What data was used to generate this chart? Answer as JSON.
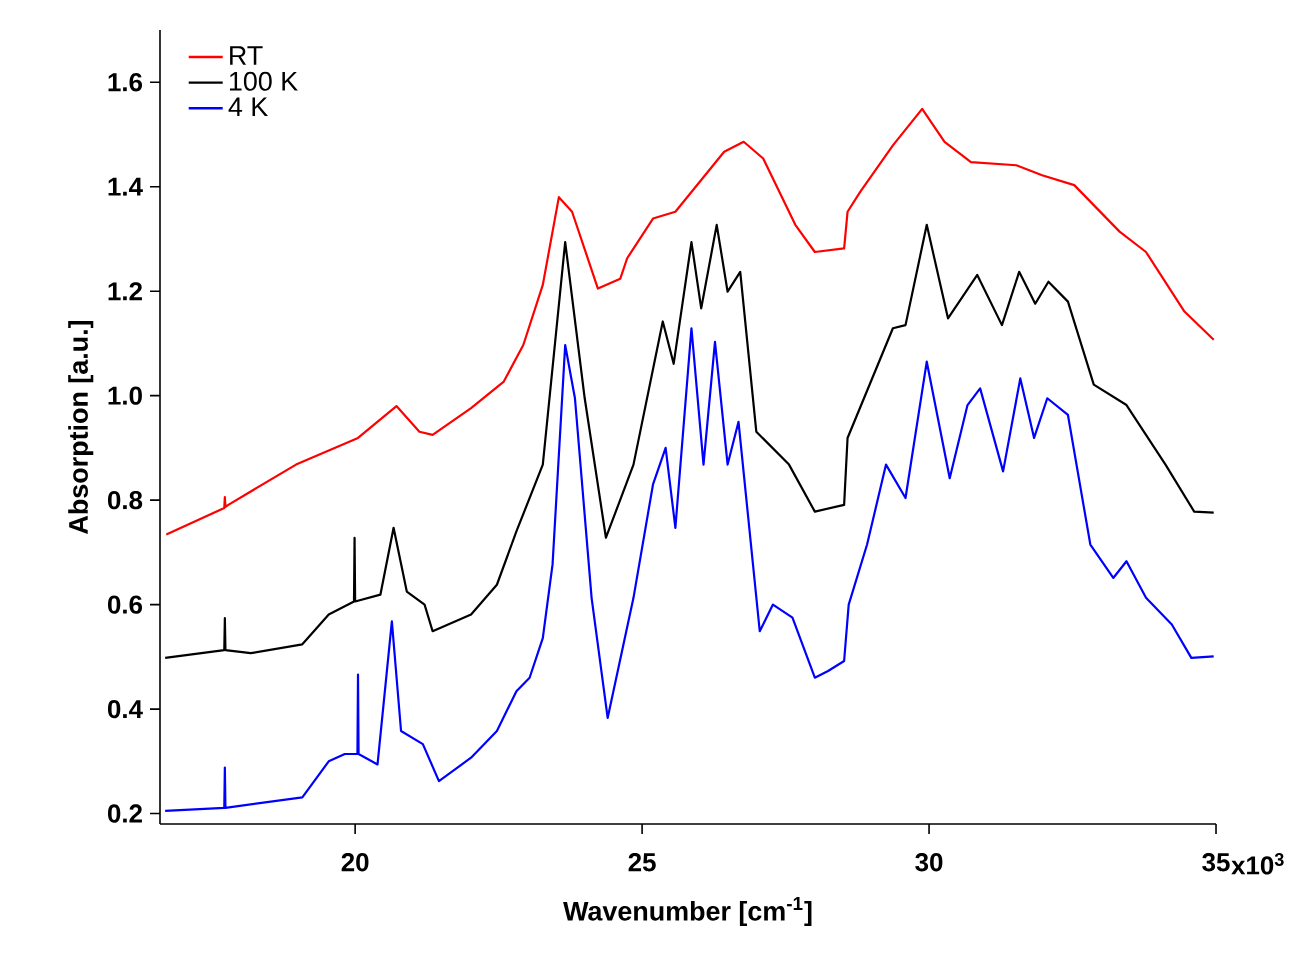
{
  "chart_data": {
    "type": "line",
    "xlabel": "Wavenumber [cm$^{-1}$]",
    "ylabel": "Absorption [a.u.]",
    "xlim": [
      16.6,
      35
    ],
    "ylim": [
      0.18,
      1.7
    ],
    "xticks": [
      20,
      25,
      30,
      35
    ],
    "annotations": [
      "x10$^{3}$"
    ],
    "yticks": [
      {
        "value": 0.2,
        "label": "0.2"
      },
      {
        "value": 0.4,
        "label": "0.4"
      },
      {
        "value": 0.6,
        "label": "0.6"
      },
      {
        "value": 0.8,
        "label": "0.8"
      },
      {
        "value": 1.0,
        "label": "1.0"
      },
      {
        "value": 1.2,
        "label": "1.2"
      },
      {
        "value": 1.4,
        "label": "1.4"
      },
      {
        "value": 1.6,
        "label": "1.6"
      }
    ],
    "grid": false,
    "legend": "top left",
    "marker": "none",
    "line_style": "solid",
    "series": [
      {
        "name": "RT",
        "color": "#ff0000",
        "x": [
          16.71,
          17.72,
          17.73,
          17.74,
          17.79,
          18.97,
          20.05,
          20.72,
          21.12,
          21.35,
          22.02,
          22.59,
          22.93,
          23.27,
          23.55,
          23.78,
          24.23,
          24.62,
          24.74,
          25.19,
          25.58,
          26.43,
          26.77,
          27.11,
          27.67,
          28.01,
          28.52,
          28.58,
          28.8,
          29.37,
          29.88,
          30.27,
          30.73,
          31.52,
          31.97,
          32.53,
          33.32,
          33.78,
          34.45,
          34.96
        ],
        "values": [
          0.734,
          0.785,
          0.806,
          0.787,
          0.791,
          0.868,
          0.919,
          0.98,
          0.931,
          0.925,
          0.976,
          1.027,
          1.097,
          1.212,
          1.38,
          1.352,
          1.205,
          1.224,
          1.263,
          1.339,
          1.352,
          1.467,
          1.486,
          1.454,
          1.327,
          1.275,
          1.282,
          1.352,
          1.39,
          1.479,
          1.549,
          1.486,
          1.447,
          1.441,
          1.422,
          1.403,
          1.314,
          1.275,
          1.161,
          1.107
        ]
      },
      {
        "name": "100 K",
        "color": "#000000",
        "x": [
          16.69,
          17.72,
          17.73,
          17.74,
          18.18,
          19.08,
          19.54,
          19.98,
          19.99,
          20.0,
          20.44,
          20.67,
          20.9,
          21.21,
          21.35,
          22.02,
          22.47,
          22.81,
          23.27,
          23.66,
          24.0,
          24.37,
          24.85,
          25.36,
          25.55,
          25.86,
          26.03,
          26.3,
          26.49,
          26.71,
          26.99,
          27.56,
          28.01,
          28.52,
          28.58,
          29.37,
          29.59,
          29.96,
          30.33,
          30.84,
          31.27,
          31.57,
          31.85,
          32.08,
          32.42,
          32.87,
          33.44,
          34.12,
          34.62,
          34.96
        ],
        "values": [
          0.498,
          0.513,
          0.574,
          0.513,
          0.507,
          0.524,
          0.581,
          0.606,
          0.728,
          0.606,
          0.619,
          0.747,
          0.625,
          0.6,
          0.549,
          0.581,
          0.638,
          0.74,
          0.868,
          1.294,
          0.995,
          0.728,
          0.868,
          1.142,
          1.061,
          1.294,
          1.167,
          1.327,
          1.199,
          1.237,
          0.931,
          0.868,
          0.778,
          0.791,
          0.919,
          1.129,
          1.135,
          1.327,
          1.148,
          1.231,
          1.135,
          1.237,
          1.176,
          1.218,
          1.18,
          1.021,
          0.982,
          0.868,
          0.778,
          0.776
        ]
      },
      {
        "name": "4 K",
        "color": "#0000ff",
        "x": [
          16.69,
          17.72,
          17.73,
          17.74,
          19.08,
          19.54,
          19.82,
          20.04,
          20.05,
          20.06,
          20.39,
          20.64,
          20.8,
          21.18,
          21.46,
          22.02,
          22.47,
          22.81,
          23.04,
          23.27,
          23.44,
          23.66,
          23.83,
          24.12,
          24.4,
          24.85,
          25.19,
          25.41,
          25.58,
          25.86,
          26.07,
          26.27,
          26.49,
          26.68,
          27.05,
          27.28,
          27.62,
          28.01,
          28.24,
          28.52,
          28.6,
          28.92,
          29.25,
          29.59,
          29.96,
          30.36,
          30.67,
          30.89,
          31.29,
          31.59,
          31.83,
          32.06,
          32.42,
          32.81,
          33.21,
          33.44,
          33.78,
          34.23,
          34.57,
          34.96
        ],
        "values": [
          0.205,
          0.211,
          0.288,
          0.211,
          0.231,
          0.3,
          0.314,
          0.314,
          0.466,
          0.314,
          0.294,
          0.568,
          0.358,
          0.333,
          0.262,
          0.307,
          0.358,
          0.434,
          0.46,
          0.536,
          0.677,
          1.097,
          0.995,
          0.613,
          0.383,
          0.613,
          0.83,
          0.9,
          0.747,
          1.129,
          0.868,
          1.103,
          0.868,
          0.95,
          0.549,
          0.6,
          0.575,
          0.46,
          0.473,
          0.492,
          0.6,
          0.715,
          0.868,
          0.804,
          1.065,
          0.842,
          0.982,
          1.014,
          0.855,
          1.033,
          0.919,
          0.995,
          0.963,
          0.715,
          0.651,
          0.683,
          0.613,
          0.562,
          0.498,
          0.501
        ]
      }
    ]
  }
}
